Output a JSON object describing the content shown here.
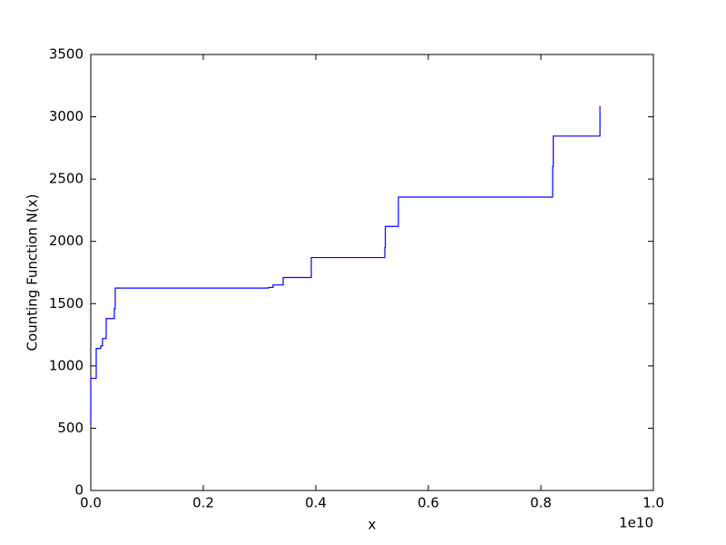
{
  "chart_data": {
    "type": "line",
    "xlabel": "x",
    "ylabel": "Counting Function N(x)",
    "x_offset_label": "1e10",
    "x": [
      0.0,
      0.0,
      0.0097,
      0.0097,
      0.0177,
      0.0177,
      0.021,
      0.021,
      0.0274,
      0.0274,
      0.0419,
      0.0419,
      0.0435,
      0.0435,
      0.316,
      0.316,
      0.324,
      0.324,
      0.342,
      0.342,
      0.392,
      0.392,
      0.5226,
      0.5226,
      0.5235,
      0.5235,
      0.5468,
      0.5468,
      0.821,
      0.821,
      0.822,
      0.822,
      0.905,
      0.905
    ],
    "series": [
      {
        "color": "#0000ff",
        "values": [
          530,
          900,
          900,
          1140,
          1140,
          1160,
          1160,
          1220,
          1220,
          1380,
          1380,
          1460,
          1460,
          1625,
          1625,
          1630,
          1630,
          1650,
          1650,
          1710,
          1710,
          1870,
          1870,
          1950,
          1950,
          2120,
          2120,
          2355,
          2355,
          2600,
          2600,
          2845,
          2845,
          3085
        ]
      }
    ],
    "xlim": [
      0,
      1.0
    ],
    "xticks": [
      {
        "value": 0,
        "label": "0.0"
      },
      0.2,
      0.4,
      0.6,
      0.8,
      {
        "value": 1.0,
        "label": "1.0"
      }
    ],
    "ylim": [
      0,
      3500
    ],
    "yticks": [
      0,
      500,
      1000,
      1500,
      2000,
      2500,
      3000,
      3500
    ],
    "grid": false
  }
}
